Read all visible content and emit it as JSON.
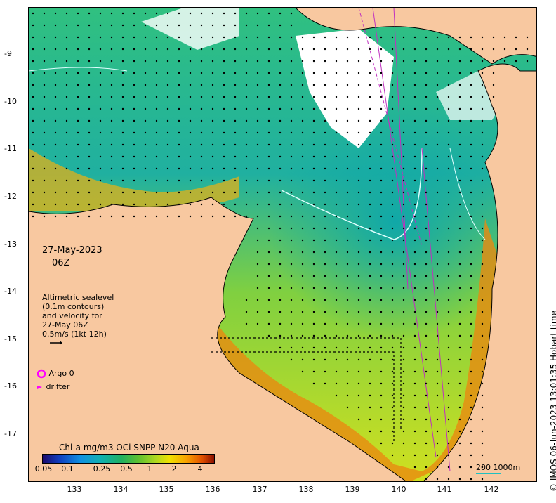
{
  "map": {
    "date": "27-May-2023",
    "time": "06Z",
    "legend_lines": [
      "Altimetric sealevel",
      "(0.1m contours)",
      "and velocity for",
      "27-May 06Z",
      "0.5m/s (1kt 12h)"
    ],
    "argo_label": "Argo 0",
    "drifter_label": "drifter",
    "colorbar_title": "Chl-a mg/m3 OCi SNPP N20 Aqua",
    "colorbar_ticks": [
      "0.05",
      "0.1",
      "0.25",
      "0.5",
      "1",
      "2",
      "4"
    ],
    "scale_label": "200  1000m",
    "credit": "© IMOS 06-Jun-2023 13:01:35 Hobart time",
    "lat_ticks": [
      "-9",
      "-10",
      "-11",
      "-12",
      "-13",
      "-14",
      "-15",
      "-16",
      "-17"
    ],
    "lon_ticks": [
      "133",
      "134",
      "135",
      "136",
      "137",
      "138",
      "139",
      "140",
      "141",
      "142"
    ],
    "colors": {
      "land": "#f8c8a0",
      "coast": "#000000",
      "argo": "#ff00ff",
      "drifter": "#ff00ff"
    }
  }
}
